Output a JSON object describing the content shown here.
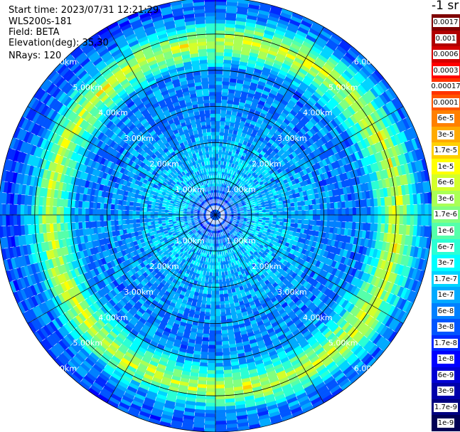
{
  "header": {
    "start_time": "Start time: 2023/07/31 12:21:29",
    "instrument": "WLS200s-181",
    "field": "Field: BETA",
    "elevation": "Elevation(deg): 35.30",
    "nrays": "NRays: 120"
  },
  "colorbar": {
    "unit_label": "-1 sr",
    "levels": [
      {
        "label": "0.0017",
        "color": "#7f0000"
      },
      {
        "label": "0.001",
        "color": "#b00000"
      },
      {
        "label": "0.0006",
        "color": "#d40000"
      },
      {
        "label": "0.0003",
        "color": "#ff0000"
      },
      {
        "label": "0.00017",
        "color": "#ff3300"
      },
      {
        "label": "0.0001",
        "color": "#ff5500"
      },
      {
        "label": "6e-5",
        "color": "#ff8000"
      },
      {
        "label": "3e-5",
        "color": "#ffaa00"
      },
      {
        "label": "1.7e-5",
        "color": "#ffd000"
      },
      {
        "label": "1e-5",
        "color": "#ffff00"
      },
      {
        "label": "6e-6",
        "color": "#d4ff2a"
      },
      {
        "label": "3e-6",
        "color": "#aaff55"
      },
      {
        "label": "1.7e-6",
        "color": "#80ff80"
      },
      {
        "label": "1e-6",
        "color": "#55ffaa"
      },
      {
        "label": "6e-7",
        "color": "#2affd4"
      },
      {
        "label": "3e-7",
        "color": "#00ffff"
      },
      {
        "label": "1.7e-7",
        "color": "#00d4ff"
      },
      {
        "label": "1e-7",
        "color": "#00aaff"
      },
      {
        "label": "6e-8",
        "color": "#0080ff"
      },
      {
        "label": "3e-8",
        "color": "#0055ff"
      },
      {
        "label": "1.7e-8",
        "color": "#002aff"
      },
      {
        "label": "1e-8",
        "color": "#0000ff"
      },
      {
        "label": "6e-9",
        "color": "#0000d4"
      },
      {
        "label": "3e-9",
        "color": "#0000aa"
      },
      {
        "label": "1.7e-9",
        "color": "#000080"
      },
      {
        "label": "1e-9",
        "color": "#000055"
      }
    ]
  },
  "chart_data": {
    "type": "heatmap",
    "projection": "polar (PPI scan)",
    "field": "BETA",
    "elevation_deg": 35.3,
    "n_rays": 120,
    "max_range_km": 6.0,
    "range_rings_km": [
      1,
      2,
      3,
      4,
      5,
      6
    ],
    "range_ring_labels": [
      "1.00km",
      "2.00km",
      "3.00km",
      "4.00km",
      "5.00km",
      "6.00km"
    ],
    "radial_lines_deg": [
      0,
      30,
      60,
      90,
      120,
      150,
      180,
      210,
      240,
      270,
      300,
      330
    ],
    "background_beta_sr_inv": 5e-08,
    "range_profile": [
      {
        "range_km": 0.5,
        "beta_sr_inv": 3e-08
      },
      {
        "range_km": 1.0,
        "beta_sr_inv": 1.7e-07
      },
      {
        "range_km": 2.0,
        "beta_sr_inv": 1e-07
      },
      {
        "range_km": 3.0,
        "beta_sr_inv": 6e-08
      },
      {
        "range_km": 4.0,
        "beta_sr_inv": 6e-08
      },
      {
        "range_km": 4.8,
        "beta_sr_inv": 6e-06
      },
      {
        "range_km": 5.5,
        "beta_sr_inv": 6e-08
      },
      {
        "range_km": 6.0,
        "beta_sr_inv": 3e-08
      }
    ],
    "colorbar_scale": "log",
    "colorbar_range": [
      1e-09,
      0.0017
    ]
  }
}
